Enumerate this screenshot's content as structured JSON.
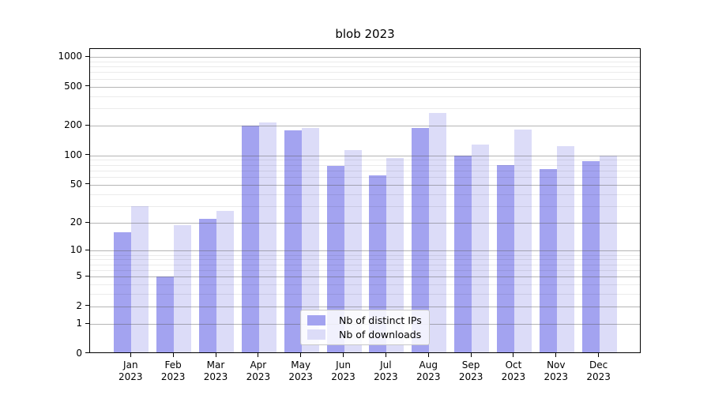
{
  "chart_data": {
    "type": "bar",
    "title": "blob 2023",
    "xlabel": "",
    "ylabel": "",
    "yscale": "log1p",
    "grid": true,
    "legend_position": "inside lower center",
    "ylim": [
      0,
      1200
    ],
    "y_major_ticks": [
      0,
      1,
      2,
      5,
      10,
      20,
      50,
      100,
      200,
      500,
      1000
    ],
    "y_minor_ticks": [
      3,
      4,
      6,
      7,
      8,
      9,
      30,
      40,
      60,
      70,
      80,
      90,
      300,
      400,
      600,
      700,
      800,
      900
    ],
    "categories": [
      "Jan 2023",
      "Feb 2023",
      "Mar 2023",
      "Apr 2023",
      "May 2023",
      "Jun 2023",
      "Jul 2023",
      "Aug 2023",
      "Sep 2023",
      "Oct 2023",
      "Nov 2023",
      "Dec 2023"
    ],
    "series": [
      {
        "name": "Nb of distinct IPs",
        "color": "#a3a3f0",
        "values": [
          16,
          5,
          22,
          202,
          180,
          78,
          62,
          190,
          100,
          80,
          72,
          87
        ]
      },
      {
        "name": "Nb of downloads",
        "color": "#dcdcf8",
        "values": [
          30,
          19,
          27,
          218,
          190,
          113,
          95,
          270,
          130,
          185,
          125,
          100
        ]
      }
    ]
  }
}
